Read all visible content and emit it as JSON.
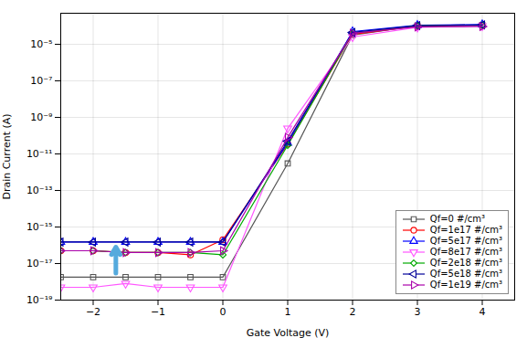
{
  "chart_data": {
    "type": "line",
    "xlabel": "Gate Voltage (V)",
    "ylabel": "Drain Current (A)",
    "xlim": [
      -2.5,
      4.5
    ],
    "ylim": [
      1e-19,
      0.0005
    ],
    "xticks": [
      -2,
      -1,
      0,
      1,
      2,
      3,
      4
    ],
    "yticks": [
      {
        "value": 1e-19,
        "label": "10⁻¹⁹"
      },
      {
        "value": 1e-17,
        "label": "10⁻¹⁷"
      },
      {
        "value": 1e-15,
        "label": "10⁻¹⁵"
      },
      {
        "value": 1e-13,
        "label": "10⁻¹³"
      },
      {
        "value": 1e-11,
        "label": "10⁻¹¹"
      },
      {
        "value": 1e-09,
        "label": "10⁻⁹"
      },
      {
        "value": 1e-07,
        "label": "10⁻⁷"
      },
      {
        "value": 1e-05,
        "label": "10⁻⁵"
      }
    ],
    "log": "y",
    "grid": true,
    "legend": "lower right",
    "x": [
      -2.5,
      -2,
      -1.5,
      -1,
      -0.5,
      0,
      1,
      2,
      3,
      4
    ],
    "series": [
      {
        "name": "Qf=0 #/cm³",
        "color": "#555555",
        "marker": "square",
        "values": [
          1.8e-18,
          1.8e-18,
          1.8e-18,
          1.8e-18,
          1.8e-18,
          1.8e-18,
          3e-12,
          3.2e-05,
          0.000105,
          0.000115
        ]
      },
      {
        "name": "Qf=1e17 #/cm³",
        "color": "#ff0000",
        "marker": "circle",
        "values": [
          5e-17,
          5e-17,
          4e-17,
          4e-17,
          3e-17,
          2e-16,
          3.5e-11,
          3.5e-05,
          0.0001,
          0.00011
        ]
      },
      {
        "name": "Qf=5e17 #/cm³",
        "color": "#0000ff",
        "marker": "triangle-up",
        "values": [
          1.5e-16,
          1.5e-16,
          1.5e-16,
          1.5e-16,
          1.5e-16,
          1.5e-16,
          4e-11,
          5e-05,
          0.00011,
          0.00012
        ]
      },
      {
        "name": "Qf=8e17 #/cm³",
        "color": "#ff55ff",
        "marker": "triangle-down",
        "values": [
          5e-19,
          5e-19,
          8e-19,
          5e-19,
          5e-19,
          5e-19,
          2.5e-10,
          2.5e-05,
          8.5e-05,
          0.0001
        ]
      },
      {
        "name": "Qf=2e18 #/cm³",
        "color": "#00aa00",
        "marker": "diamond",
        "values": [
          5e-17,
          5e-17,
          4e-17,
          4e-17,
          4e-17,
          3e-17,
          3e-11,
          4e-05,
          0.000105,
          0.00011
        ]
      },
      {
        "name": "Qf=5e18 #/cm³",
        "color": "#000099",
        "marker": "triangle-left",
        "values": [
          1.5e-16,
          1.5e-16,
          1.5e-16,
          1.5e-16,
          1.5e-16,
          1.5e-16,
          5e-11,
          4.5e-05,
          0.000105,
          0.000115
        ]
      },
      {
        "name": "Qf=1e19 #/cm³",
        "color": "#aa00aa",
        "marker": "triangle-right",
        "values": [
          5e-17,
          5e-17,
          4e-17,
          4e-17,
          4e-17,
          5e-17,
          8e-11,
          4e-05,
          9e-05,
          9.5e-05
        ]
      }
    ],
    "arrow": {
      "x": -1.65,
      "y_start": 3e-18,
      "y_end": 8e-17,
      "color": "#55aadd"
    }
  }
}
